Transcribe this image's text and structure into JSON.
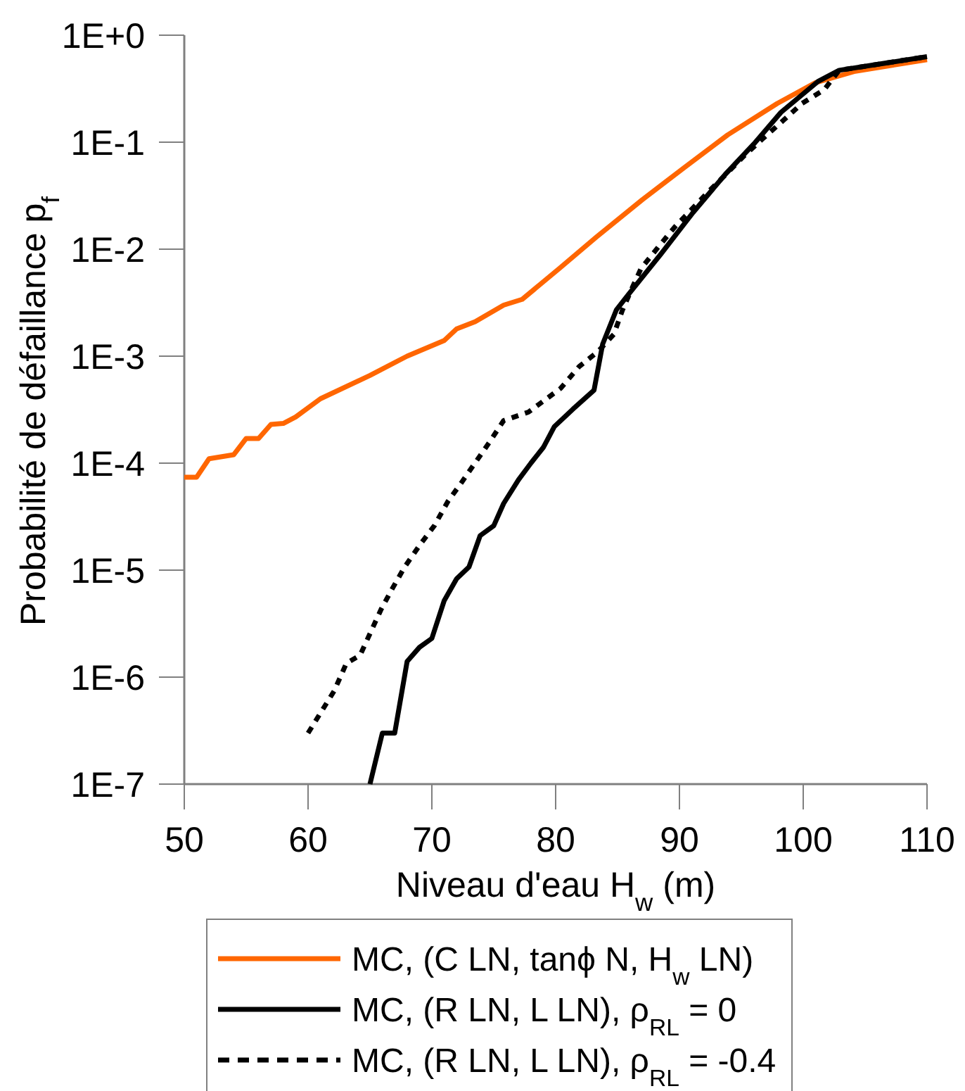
{
  "chart_data": {
    "type": "line",
    "xlabel": "Niveau d'eau H$_{w}$ (m)",
    "ylabel": "Probabilité de défaillance p$_{f}$",
    "log": "y",
    "xlim": [
      50,
      110
    ],
    "xticks": [
      50,
      60,
      70,
      80,
      90,
      100,
      110
    ],
    "ylim": [
      1e-07,
      1
    ],
    "yticks": [
      {
        "value": 1e-07,
        "label": "1E-7"
      },
      {
        "value": 1e-06,
        "label": "1E-6"
      },
      {
        "value": 1e-05,
        "label": "1E-5"
      },
      {
        "value": 0.0001,
        "label": "1E-4"
      },
      {
        "value": 0.001,
        "label": "1E-3"
      },
      {
        "value": 0.01,
        "label": "1E-2"
      },
      {
        "value": 0.1,
        "label": "1E-1"
      },
      {
        "value": 1,
        "label": "1E+0"
      }
    ],
    "grid": false,
    "legend": "bottom",
    "marker": "none",
    "series": [
      {
        "name": "MC, (C LN, tanϕ N, H$_{w}$ LN)",
        "color": "#ff6600",
        "line_style": "solid",
        "x": [
          50,
          51,
          52,
          54,
          55,
          56,
          57,
          58,
          59,
          61,
          65,
          68,
          71,
          72,
          73.5,
          75.8,
          77.3,
          80.3,
          83.3,
          87,
          90.4,
          93.9,
          97.9,
          101,
          104.2,
          110
        ],
        "values": [
          7.4e-05,
          7.4e-05,
          0.00011,
          0.00012,
          0.00017,
          0.00017,
          0.00023,
          0.000235,
          0.00027,
          0.0004,
          0.00066,
          0.001,
          0.0014,
          0.0018,
          0.0021,
          0.003,
          0.0034,
          0.0066,
          0.013,
          0.029,
          0.058,
          0.117,
          0.23,
          0.36,
          0.46,
          0.59
        ]
      },
      {
        "name": "MC, (R LN, L LN), ρ$_{RL}$ = 0",
        "color": "#000000",
        "line_style": "solid",
        "x": [
          65,
          66,
          67,
          68,
          69,
          70,
          71,
          72,
          73,
          73.9,
          75,
          75.8,
          77,
          78,
          79,
          79.9,
          81.4,
          83.1,
          83.8,
          84.9,
          85.9,
          88.5,
          91.1,
          93.7,
          96,
          98.2,
          101.2,
          102.9,
          110
        ],
        "values": [
          1e-07,
          3e-07,
          3e-07,
          1.4e-06,
          1.9e-06,
          2.3e-06,
          5.2e-06,
          8.3e-06,
          1.07e-05,
          2.1e-05,
          2.6e-05,
          4.2e-05,
          7e-05,
          0.0001,
          0.00014,
          0.00022,
          0.00032,
          0.00048,
          0.0013,
          0.0027,
          0.0038,
          0.009,
          0.022,
          0.05,
          0.096,
          0.19,
          0.37,
          0.47,
          0.63
        ]
      },
      {
        "name": "MC, (R LN, L LN), ρ$_{RL}$ = -0.4",
        "color": "#000000",
        "line_style": "dashed",
        "x": [
          60,
          62.1,
          63.1,
          64.2,
          65.9,
          66.8,
          67.8,
          69,
          70.2,
          71.3,
          72.4,
          74.7,
          75.8,
          77.8,
          80.4,
          81.9,
          83.4,
          84.7,
          85.4,
          86.2,
          86.9,
          88.3,
          89.6,
          90.9,
          92.4,
          93.9,
          95.2,
          96.7,
          98.4,
          99.9,
          101.7,
          102.9,
          110
        ],
        "values": [
          3e-07,
          7.4e-07,
          1.35e-06,
          1.6e-06,
          4.3e-06,
          6.7e-06,
          1.07e-05,
          1.7e-05,
          2.6e-05,
          4.4e-05,
          6.6e-05,
          0.00016,
          0.00025,
          0.0003,
          0.0005,
          0.0008,
          0.0011,
          0.0016,
          0.0027,
          0.0044,
          0.0066,
          0.0105,
          0.016,
          0.023,
          0.035,
          0.052,
          0.074,
          0.107,
          0.16,
          0.23,
          0.31,
          0.47,
          0.63
        ]
      }
    ]
  }
}
